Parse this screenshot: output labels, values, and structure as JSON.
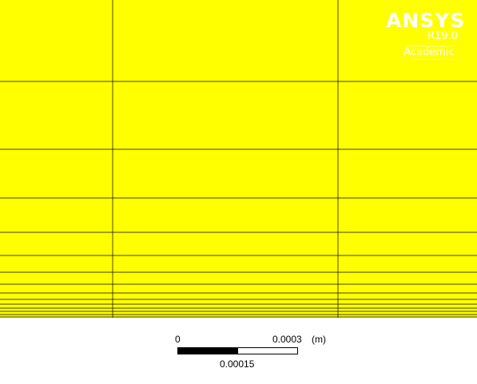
{
  "logo": {
    "name": "ANSYS",
    "version": "R19.0",
    "license": "Academic"
  },
  "mesh": {
    "fill_color": "#ffff00",
    "line_color": "#000000"
  },
  "scale_bar": {
    "min_label": "0",
    "max_label": "0.0003",
    "unit_label": "(m)",
    "mid_label": "0.00015",
    "filled_fraction": 0.5
  },
  "colors": {
    "background": "#ffffff",
    "logo_text": "#ffffff"
  }
}
